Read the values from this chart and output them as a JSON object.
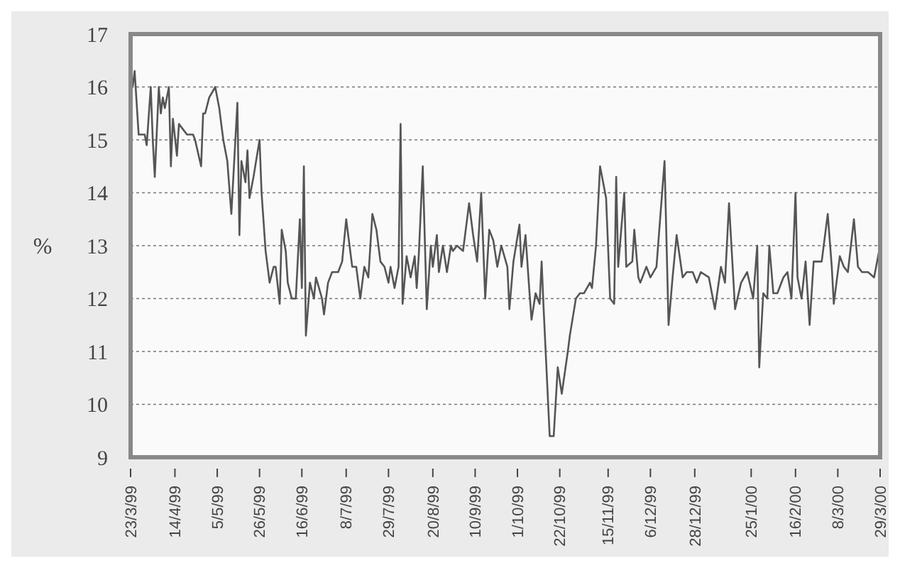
{
  "chart_data": {
    "type": "line",
    "ylabel": "%",
    "grid": "y",
    "line_style": "solid",
    "marker": "none",
    "xlim": [
      "1999-03-23",
      "2000-03-29"
    ],
    "ylim": [
      9,
      17
    ],
    "yticks": [
      9,
      10,
      11,
      12,
      13,
      14,
      15,
      16,
      17
    ],
    "xticks": [
      {
        "value": "1999-03-23",
        "label": "23/3/99"
      },
      {
        "value": "1999-04-14",
        "label": "14/4/99"
      },
      {
        "value": "1999-05-05",
        "label": "5/5/99"
      },
      {
        "value": "1999-05-26",
        "label": "26/5/99"
      },
      {
        "value": "1999-06-16",
        "label": "16/6/99"
      },
      {
        "value": "1999-07-08",
        "label": "8/7/99"
      },
      {
        "value": "1999-07-29",
        "label": "29/7/99"
      },
      {
        "value": "1999-08-20",
        "label": "20/8/99"
      },
      {
        "value": "1999-09-10",
        "label": "10/9/99"
      },
      {
        "value": "1999-10-01",
        "label": "1/10/99"
      },
      {
        "value": "1999-10-22",
        "label": "22/10/99"
      },
      {
        "value": "1999-11-15",
        "label": "15/11/99"
      },
      {
        "value": "1999-12-06",
        "label": "6/12/99"
      },
      {
        "value": "1999-12-28",
        "label": "28/12/99"
      },
      {
        "value": "2000-01-25",
        "label": "25/1/00"
      },
      {
        "value": "2000-02-16",
        "label": "16/2/00"
      },
      {
        "value": "2000-03-08",
        "label": "8/3/00"
      },
      {
        "value": "2000-03-29",
        "label": "29/3/00"
      }
    ],
    "series": [
      {
        "color": "#555555",
        "x": [
          "1999-03-24",
          "1999-03-25",
          "1999-03-27",
          "1999-03-30",
          "1999-03-31",
          "1999-04-02",
          "1999-04-03",
          "1999-04-04",
          "1999-04-06",
          "1999-04-07",
          "1999-04-08",
          "1999-04-09",
          "1999-04-11",
          "1999-04-12",
          "1999-04-13",
          "1999-04-15",
          "1999-04-16",
          "1999-04-18",
          "1999-04-20",
          "1999-04-23",
          "1999-04-24",
          "1999-04-27",
          "1999-04-28",
          "1999-04-29",
          "1999-05-01",
          "1999-05-04",
          "1999-05-06",
          "1999-05-08",
          "1999-05-10",
          "1999-05-12",
          "1999-05-15",
          "1999-05-16",
          "1999-05-17",
          "1999-05-19",
          "1999-05-20",
          "1999-05-21",
          "1999-05-23",
          "1999-05-26",
          "1999-05-27",
          "1999-05-29",
          "1999-05-31",
          "1999-06-02",
          "1999-06-03",
          "1999-06-05",
          "1999-06-06",
          "1999-06-08",
          "1999-06-09",
          "1999-06-11",
          "1999-06-13",
          "1999-06-15",
          "1999-06-16",
          "1999-06-17",
          "1999-06-18",
          "1999-06-20",
          "1999-06-22",
          "1999-06-23",
          "1999-06-26",
          "1999-06-27",
          "1999-06-29",
          "1999-07-01",
          "1999-07-04",
          "1999-07-06",
          "1999-07-08",
          "1999-07-11",
          "1999-07-13",
          "1999-07-15",
          "1999-07-17",
          "1999-07-19",
          "1999-07-21",
          "1999-07-23",
          "1999-07-25",
          "1999-07-27",
          "1999-07-29",
          "1999-07-30",
          "1999-08-01",
          "1999-08-03",
          "1999-08-04",
          "1999-08-05",
          "1999-08-07",
          "1999-08-09",
          "1999-08-11",
          "1999-08-12",
          "1999-08-13",
          "1999-08-15",
          "1999-08-17",
          "1999-08-19",
          "1999-08-20",
          "1999-08-22",
          "1999-08-23",
          "1999-08-25",
          "1999-08-27",
          "1999-08-29",
          "1999-08-30",
          "1999-09-01",
          "1999-09-04",
          "1999-09-07",
          "1999-09-09",
          "1999-09-11",
          "1999-09-13",
          "1999-09-15",
          "1999-09-17",
          "1999-09-19",
          "1999-09-21",
          "1999-09-23",
          "1999-09-26",
          "1999-09-27",
          "1999-09-29",
          "1999-10-02",
          "1999-10-03",
          "1999-10-05",
          "1999-10-07",
          "1999-10-08",
          "1999-10-10",
          "1999-10-12",
          "1999-10-13",
          "1999-10-14",
          "1999-10-17",
          "1999-10-19",
          "1999-10-21",
          "1999-10-23",
          "1999-10-26",
          "1999-10-27",
          "1999-10-30",
          "1999-11-01",
          "1999-11-03",
          "1999-11-06",
          "1999-11-07",
          "1999-11-09",
          "1999-11-11",
          "1999-11-14",
          "1999-11-16",
          "1999-11-18",
          "1999-11-19",
          "1999-11-20",
          "1999-11-23",
          "1999-11-24",
          "1999-11-27",
          "1999-11-28",
          "1999-11-30",
          "1999-12-01",
          "1999-12-04",
          "1999-12-06",
          "1999-12-09",
          "1999-12-13",
          "1999-12-15",
          "1999-12-17",
          "1999-12-19",
          "1999-12-22",
          "1999-12-24",
          "1999-12-27",
          "1999-12-29",
          "1999-12-31",
          "2000-01-04",
          "2000-01-07",
          "2000-01-10",
          "2000-01-12",
          "2000-01-14",
          "2000-01-17",
          "2000-01-20",
          "2000-01-23",
          "2000-01-26",
          "2000-01-28",
          "2000-01-29",
          "2000-01-31",
          "2000-02-02",
          "2000-02-03",
          "2000-02-05",
          "2000-02-07",
          "2000-02-10",
          "2000-02-12",
          "2000-02-14",
          "2000-02-16",
          "2000-02-17",
          "2000-02-19",
          "2000-02-21",
          "2000-02-23",
          "2000-02-25",
          "2000-02-27",
          "2000-02-29",
          "2000-03-03",
          "2000-03-05",
          "2000-03-06",
          "2000-03-09",
          "2000-03-11",
          "2000-03-13",
          "2000-03-16",
          "2000-03-18",
          "2000-03-20",
          "2000-03-23",
          "2000-03-26",
          "2000-03-29"
        ],
        "values": [
          16.0,
          16.3,
          15.1,
          15.1,
          14.9,
          16.0,
          15.0,
          14.3,
          16.0,
          15.5,
          15.8,
          15.6,
          16.0,
          14.5,
          15.4,
          14.7,
          15.3,
          15.2,
          15.1,
          15.1,
          15.0,
          14.5,
          15.5,
          15.5,
          15.8,
          16.0,
          15.6,
          15.0,
          14.6,
          13.6,
          15.7,
          13.2,
          14.6,
          14.2,
          14.8,
          13.9,
          14.3,
          15.0,
          14.0,
          12.9,
          12.3,
          12.6,
          12.6,
          11.9,
          13.3,
          12.9,
          12.3,
          12.0,
          12.0,
          13.5,
          12.2,
          14.5,
          11.3,
          12.3,
          12.0,
          12.4,
          12.0,
          11.7,
          12.3,
          12.5,
          12.5,
          12.7,
          13.5,
          12.6,
          12.6,
          12.0,
          12.6,
          12.4,
          13.6,
          13.3,
          12.7,
          12.6,
          12.3,
          12.6,
          12.2,
          12.6,
          15.3,
          11.9,
          12.8,
          12.4,
          12.8,
          12.2,
          12.8,
          14.5,
          11.8,
          13.0,
          12.6,
          13.2,
          12.5,
          13.0,
          12.5,
          13.0,
          12.9,
          13.0,
          12.9,
          13.8,
          13.2,
          12.7,
          14.0,
          12.0,
          13.3,
          13.1,
          12.6,
          13.0,
          12.6,
          11.8,
          12.7,
          13.4,
          12.6,
          13.2,
          12.1,
          11.6,
          12.1,
          11.9,
          12.7,
          11.8,
          9.4,
          9.4,
          10.7,
          10.2,
          11.0,
          11.3,
          12.0,
          12.1,
          12.1,
          12.3,
          12.2,
          13.0,
          14.5,
          13.9,
          12.0,
          11.9,
          14.3,
          12.6,
          14.0,
          12.6,
          12.7,
          13.3,
          12.4,
          12.3,
          12.6,
          12.4,
          12.6,
          14.6,
          11.5,
          12.4,
          13.2,
          12.4,
          12.5,
          12.5,
          12.3,
          12.5,
          12.4,
          11.8,
          12.6,
          12.3,
          13.8,
          11.8,
          12.3,
          12.5,
          12.0,
          13.0,
          10.7,
          12.1,
          12.0,
          13.0,
          12.1,
          12.1,
          12.4,
          12.5,
          12.0,
          14.0,
          12.4,
          12.0,
          12.7,
          11.5,
          12.7,
          12.7,
          12.7,
          13.6,
          12.6,
          11.9,
          12.8,
          12.6,
          12.5,
          13.5,
          12.6,
          12.5,
          12.5,
          12.4,
          13.0
        ]
      }
    ]
  }
}
